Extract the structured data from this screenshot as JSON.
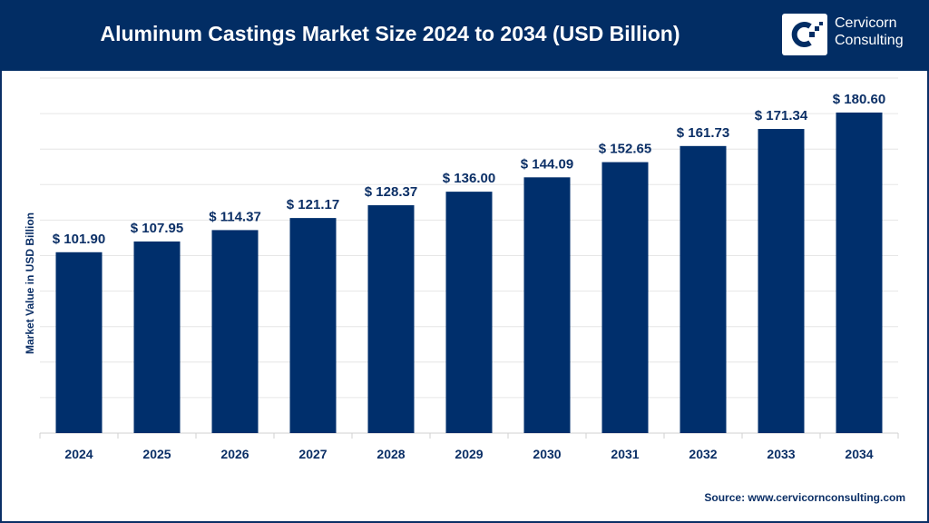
{
  "header": {
    "title": "Aluminum Castings Market Size 2024 to 2034 (USD Billion)",
    "logo_line1": "Cervicorn",
    "logo_line2": "Consulting"
  },
  "source": "Source: www.cervicornconsulting.com",
  "colors": {
    "bar": "#002f6c",
    "header": "#022d64",
    "text": "#0b2f66",
    "grid": "#e6e6e6"
  },
  "chart_data": {
    "type": "bar",
    "title": "Aluminum Castings Market Size 2024 to 2034 (USD Billion)",
    "xlabel": "",
    "ylabel": "Market Value in USD Billion",
    "categories": [
      "2024",
      "2025",
      "2026",
      "2027",
      "2028",
      "2029",
      "2030",
      "2031",
      "2032",
      "2033",
      "2034"
    ],
    "values": [
      101.9,
      107.95,
      114.37,
      121.17,
      128.37,
      136.0,
      144.09,
      152.65,
      161.73,
      171.34,
      180.6
    ],
    "data_labels": [
      "$ 101.90",
      "$ 107.95",
      "$ 114.37",
      "$ 121.17",
      "$ 128.37",
      "$ 136.00",
      "$ 144.09",
      "$ 152.65",
      "$ 161.73",
      "$ 171.34",
      "$ 180.60"
    ],
    "ylim": [
      0,
      200
    ],
    "ytick_step": 20,
    "y_tick_labels_shown": false,
    "grid": true,
    "legend": "none"
  }
}
